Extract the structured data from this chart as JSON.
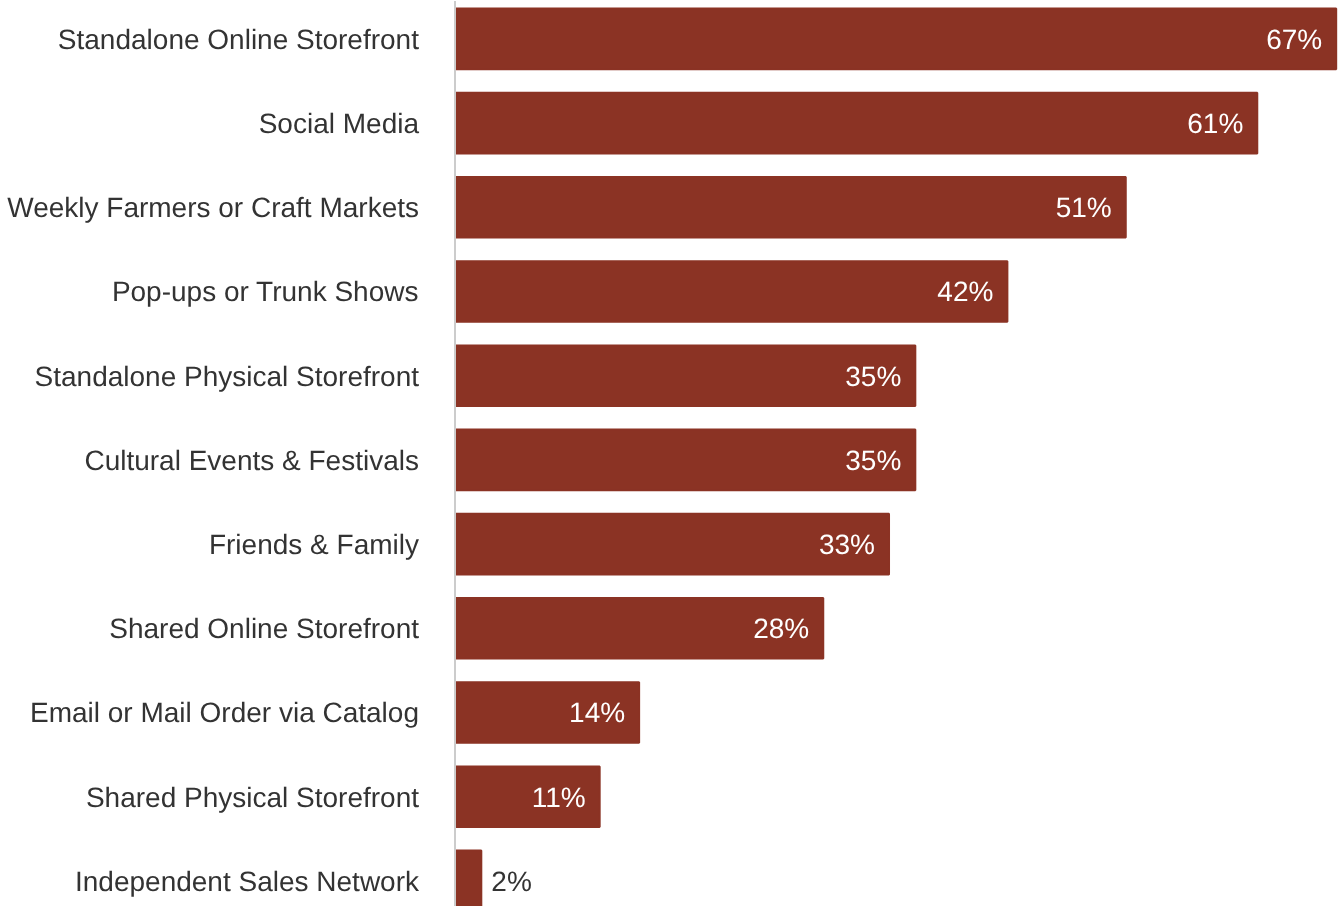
{
  "chart_data": {
    "type": "bar",
    "orientation": "horizontal",
    "categories": [
      "Standalone Online Storefront",
      "Social Media",
      "Weekly Farmers or Craft Markets",
      "Pop-ups or Trunk Shows",
      "Standalone Physical Storefront",
      "Cultural Events & Festivals",
      "Friends & Family",
      "Shared Online Storefront",
      "Email or Mail Order via Catalog",
      "Shared Physical Storefront",
      "Independent Sales Network"
    ],
    "values": [
      67,
      61,
      51,
      42,
      35,
      35,
      33,
      28,
      14,
      11,
      2
    ],
    "value_labels": [
      "67%",
      "61%",
      "51%",
      "42%",
      "35%",
      "35%",
      "33%",
      "28%",
      "14%",
      "11%",
      "2%"
    ],
    "color": "#8b3324"
  }
}
